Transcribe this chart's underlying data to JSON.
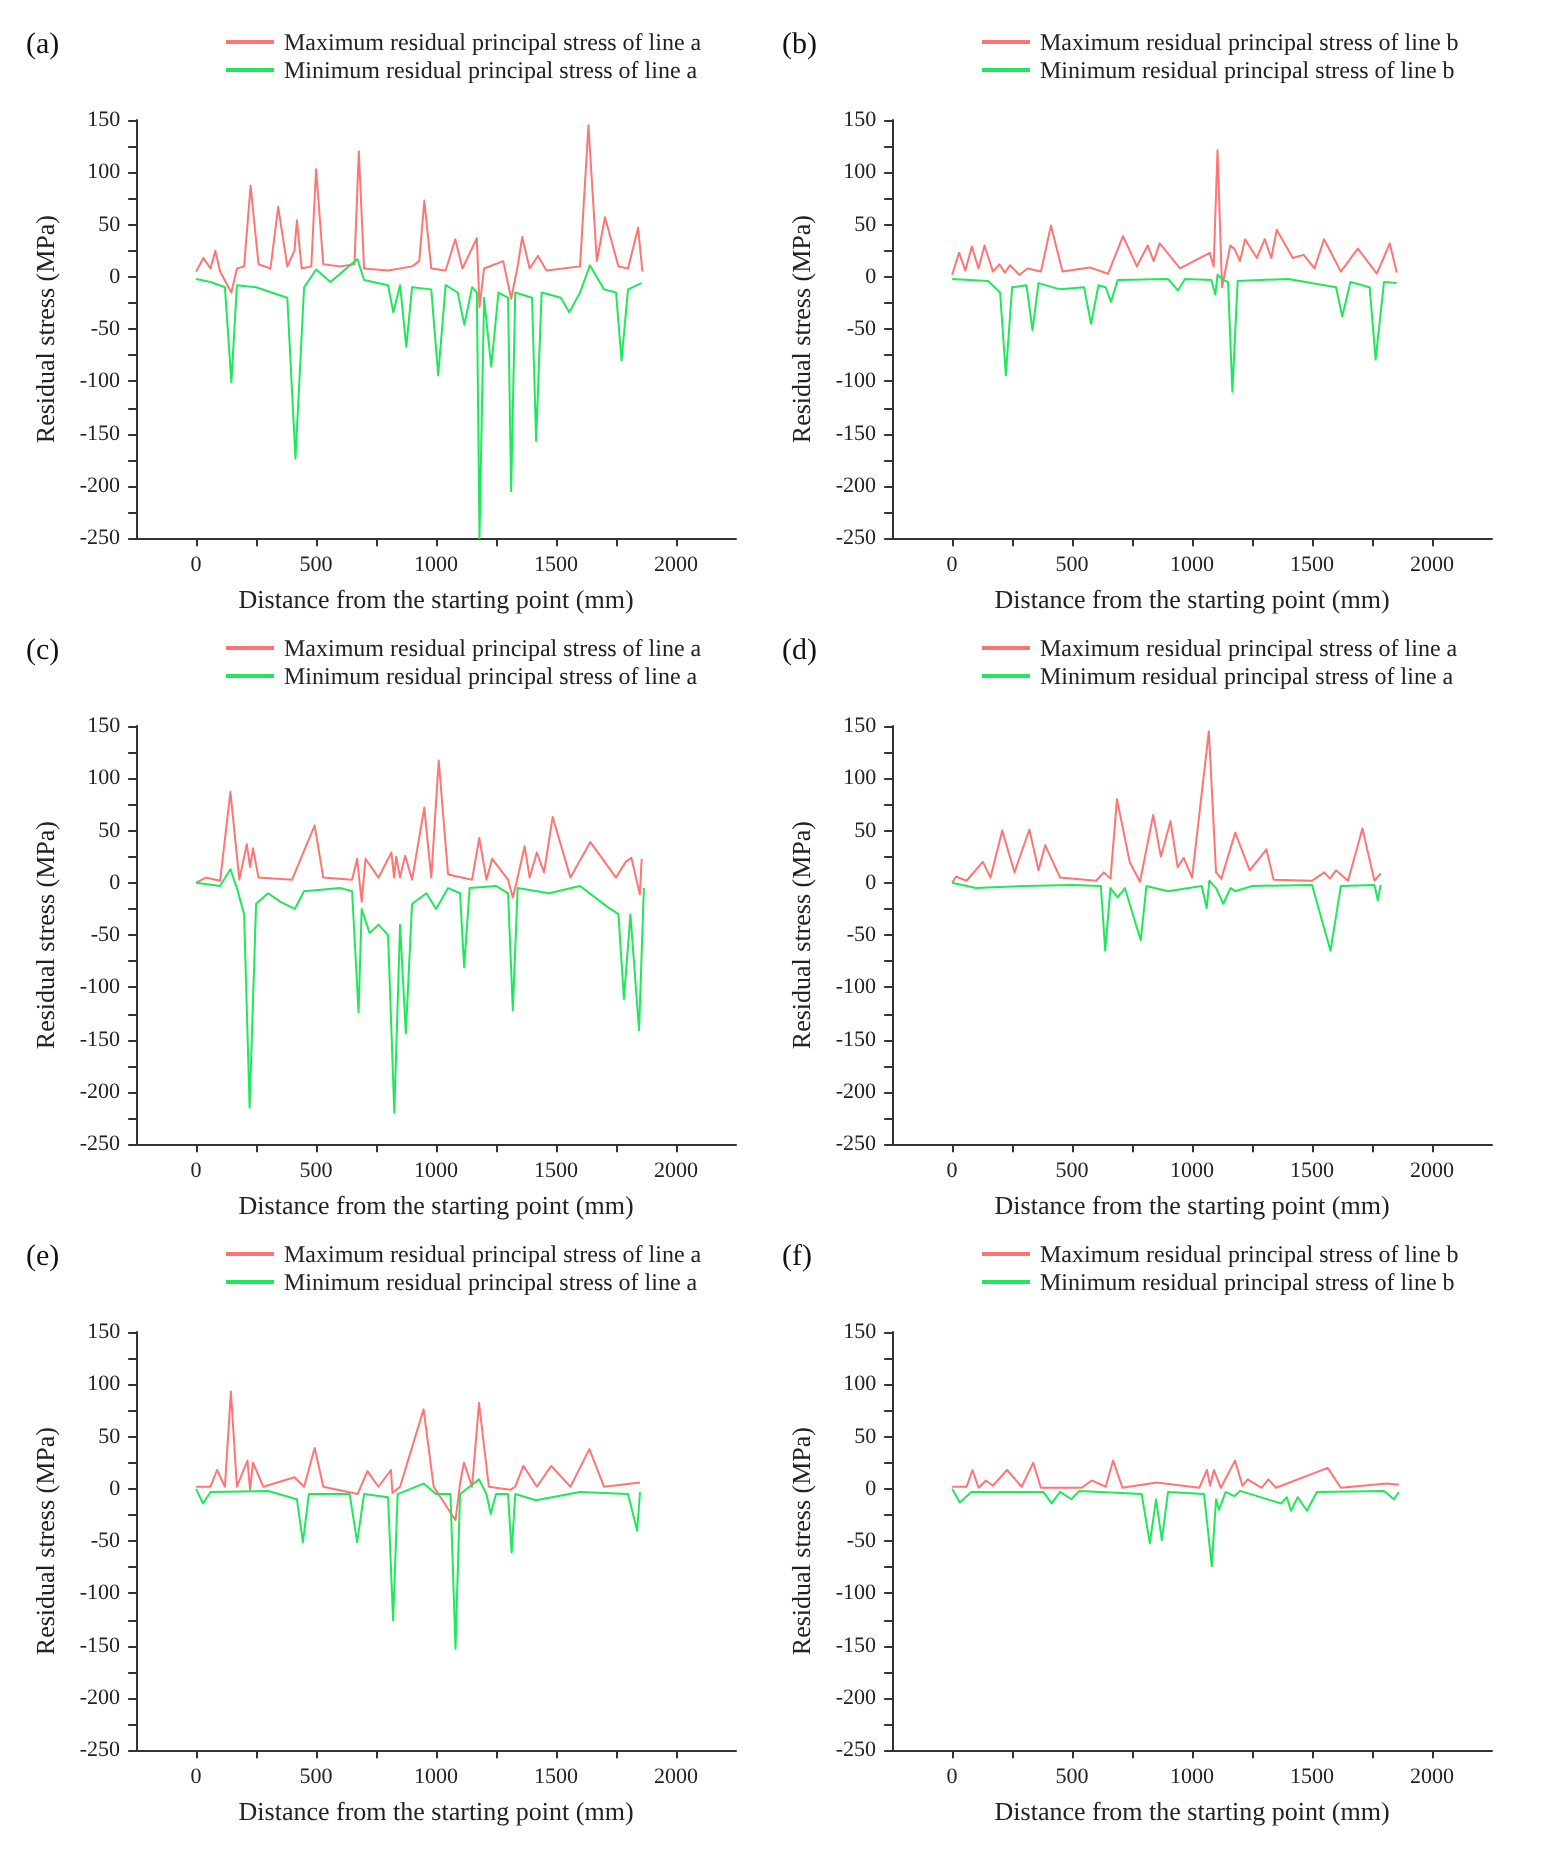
{
  "chart_data": [
    {
      "type": "line",
      "title": "(a)",
      "xlabel": "Distance from the starting point (mm)",
      "ylabel": "Residual stress (MPa)",
      "xlim": [
        -250,
        2250
      ],
      "ylim": [
        -250,
        150
      ],
      "xticks": [
        0,
        {
          "value": 250,
          "label": null
        },
        500,
        {
          "value": 750,
          "label": null
        },
        1000,
        {
          "value": 1250,
          "label": null
        },
        1500,
        {
          "value": 1750,
          "label": null
        },
        2000
      ],
      "yticks": [
        -250,
        {
          "value": -225,
          "label": null
        },
        -200,
        {
          "value": -175,
          "label": null
        },
        -150,
        {
          "value": -125,
          "label": null
        },
        -100,
        {
          "value": -75,
          "label": null
        },
        -50,
        {
          "value": -25,
          "label": null
        },
        0,
        {
          "value": 25,
          "label": null
        },
        50,
        {
          "value": 75,
          "label": null
        },
        100,
        {
          "value": 125,
          "label": null
        },
        150
      ],
      "legend": "top",
      "marker": "none",
      "line_style": "solid",
      "series": [
        {
          "name": "Maximum residual principal stress of line a",
          "color": "#ff7575",
          "x": [
            0,
            30,
            60,
            80,
            100,
            147,
            170,
            200,
            227,
            260,
            310,
            342,
            380,
            410,
            420,
            440,
            480,
            500,
            530,
            600,
            660,
            678,
            700,
            800,
            900,
            930,
            951,
            980,
            1040,
            1080,
            1110,
            1170,
            1181,
            1200,
            1280,
            1313,
            1340,
            1359,
            1390,
            1425,
            1460,
            1600,
            1635,
            1670,
            1704,
            1760,
            1800,
            1842,
            1860
          ],
          "values": [
            5,
            18,
            8,
            25,
            5,
            -15,
            8,
            10,
            87,
            12,
            8,
            67,
            10,
            25,
            54,
            8,
            10,
            103,
            12,
            10,
            12,
            120,
            8,
            6,
            10,
            15,
            73,
            8,
            6,
            36,
            8,
            37,
            -29,
            8,
            15,
            -21,
            10,
            38,
            8,
            20,
            6,
            10,
            145,
            15,
            57,
            10,
            8,
            47,
            5
          ]
        },
        {
          "name": "Minimum residual principal stress of line a",
          "color": "#1fe85a",
          "x": [
            0,
            60,
            120,
            147,
            170,
            250,
            380,
            414,
            450,
            500,
            560,
            672,
            700,
            800,
            822,
            850,
            876,
            900,
            980,
            1009,
            1040,
            1090,
            1118,
            1150,
            1170,
            1181,
            1200,
            1230,
            1260,
            1300,
            1313,
            1330,
            1400,
            1417,
            1440,
            1520,
            1555,
            1600,
            1641,
            1700,
            1750,
            1773,
            1800,
            1856
          ],
          "values": [
            -2,
            -5,
            -10,
            -101,
            -8,
            -10,
            -20,
            -174,
            -10,
            7,
            -5,
            17,
            -3,
            -8,
            -34,
            -8,
            -67,
            -10,
            -12,
            -94,
            -8,
            -15,
            -46,
            -10,
            -15,
            -250,
            -20,
            -86,
            -15,
            -20,
            -205,
            -15,
            -20,
            -157,
            -15,
            -20,
            -34,
            -15,
            11,
            -12,
            -15,
            -80,
            -12,
            -6
          ]
        }
      ]
    },
    {
      "type": "line",
      "title": "(b)",
      "xlabel": "Distance from the starting point (mm)",
      "ylabel": "Residual stress (MPa)",
      "xlim": [
        -250,
        2250
      ],
      "ylim": [
        -250,
        150
      ],
      "xticks": [
        0,
        {
          "value": 250,
          "label": null
        },
        500,
        {
          "value": 750,
          "label": null
        },
        1000,
        {
          "value": 1250,
          "label": null
        },
        1500,
        {
          "value": 1750,
          "label": null
        },
        2000
      ],
      "yticks": [
        -250,
        {
          "value": -225,
          "label": null
        },
        -200,
        {
          "value": -175,
          "label": null
        },
        -150,
        {
          "value": -125,
          "label": null
        },
        -100,
        {
          "value": -75,
          "label": null
        },
        -50,
        {
          "value": -25,
          "label": null
        },
        0,
        {
          "value": 25,
          "label": null
        },
        50,
        {
          "value": 75,
          "label": null
        },
        100,
        {
          "value": 125,
          "label": null
        },
        150
      ],
      "legend": "top",
      "marker": "none",
      "line_style": "solid",
      "series": [
        {
          "name": "Maximum residual principal stress of line b",
          "color": "#ff7575",
          "x": [
            0,
            29,
            55,
            82,
            110,
            135,
            170,
            197,
            220,
            241,
            280,
            315,
            370,
            412,
            460,
            574,
            650,
            712,
            770,
            815,
            840,
            865,
            950,
            1074,
            1090,
            1106,
            1125,
            1159,
            1176,
            1200,
            1221,
            1270,
            1303,
            1330,
            1353,
            1420,
            1465,
            1510,
            1550,
            1620,
            1691,
            1770,
            1824,
            1853
          ],
          "values": [
            2,
            23,
            6,
            29,
            8,
            30,
            5,
            12,
            4,
            11,
            2,
            8,
            5,
            49,
            5,
            9,
            3,
            39,
            10,
            30,
            15,
            32,
            8,
            23,
            10,
            121,
            -10,
            30,
            27,
            15,
            36,
            18,
            36,
            18,
            45,
            18,
            21,
            8,
            36,
            5,
            27,
            3,
            32,
            4
          ]
        },
        {
          "name": "Minimum residual principal stress of line b",
          "color": "#1fe85a",
          "x": [
            0,
            150,
            200,
            224,
            250,
            310,
            335,
            360,
            450,
            550,
            579,
            610,
            640,
            662,
            690,
            900,
            941,
            970,
            1080,
            1097,
            1106,
            1130,
            1150,
            1168,
            1190,
            1400,
            1600,
            1626,
            1660,
            1740,
            1765,
            1800,
            1853
          ],
          "values": [
            -2,
            -4,
            -15,
            -94,
            -10,
            -8,
            -51,
            -6,
            -12,
            -10,
            -45,
            -8,
            -10,
            -24,
            -3,
            -2,
            -13,
            -2,
            -3,
            -17,
            2,
            -3,
            -5,
            -110,
            -4,
            -2,
            -10,
            -38,
            -5,
            -10,
            -79,
            -5,
            -6
          ]
        }
      ]
    },
    {
      "type": "line",
      "title": "(c)",
      "xlabel": "Distance from the starting point (mm)",
      "ylabel": "Residual stress (MPa)",
      "xlim": [
        -250,
        2250
      ],
      "ylim": [
        -250,
        150
      ],
      "xticks": [
        0,
        {
          "value": 250,
          "label": null
        },
        500,
        {
          "value": 750,
          "label": null
        },
        1000,
        {
          "value": 1250,
          "label": null
        },
        1500,
        {
          "value": 1750,
          "label": null
        },
        2000
      ],
      "yticks": [
        -250,
        {
          "value": -225,
          "label": null
        },
        -200,
        {
          "value": -175,
          "label": null
        },
        -150,
        {
          "value": -125,
          "label": null
        },
        -100,
        {
          "value": -75,
          "label": null
        },
        -50,
        {
          "value": -25,
          "label": null
        },
        0,
        {
          "value": 25,
          "label": null
        },
        50,
        {
          "value": 75,
          "label": null
        },
        100,
        {
          "value": 125,
          "label": null
        },
        150
      ],
      "legend": "top",
      "marker": "none",
      "line_style": "solid",
      "series": [
        {
          "name": "Maximum residual principal stress of line a",
          "color": "#ff7575",
          "x": [
            0,
            40,
            100,
            143,
            180,
            211,
            225,
            237,
            260,
            400,
            494,
            530,
            650,
            671,
            690,
            706,
            760,
            814,
            825,
            834,
            850,
            871,
            900,
            951,
            980,
            1011,
            1050,
            1150,
            1180,
            1210,
            1234,
            1300,
            1320,
            1340,
            1369,
            1390,
            1420,
            1450,
            1486,
            1560,
            1643,
            1750,
            1790,
            1814,
            1849,
            1857
          ],
          "values": [
            0,
            5,
            2,
            87,
            3,
            37,
            15,
            33,
            5,
            3,
            55,
            5,
            3,
            23,
            -18,
            23,
            5,
            29,
            5,
            25,
            5,
            26,
            3,
            72,
            5,
            117,
            8,
            3,
            43,
            3,
            23,
            3,
            -14,
            5,
            35,
            5,
            29,
            10,
            63,
            5,
            39,
            5,
            20,
            24,
            -11,
            23
          ]
        },
        {
          "name": "Minimum residual principal stress of line a",
          "color": "#1fe85a",
          "x": [
            0,
            100,
            143,
            170,
            200,
            223,
            250,
            300,
            350,
            411,
            450,
            600,
            650,
            677,
            690,
            723,
            760,
            800,
            826,
            850,
            874,
            900,
            960,
            1000,
            1050,
            1100,
            1117,
            1140,
            1250,
            1300,
            1320,
            1340,
            1471,
            1600,
            1714,
            1760,
            1783,
            1810,
            1846,
            1866
          ],
          "values": [
            0,
            -3,
            13,
            -5,
            -30,
            -215,
            -20,
            -10,
            -18,
            -25,
            -8,
            -5,
            -8,
            -124,
            -25,
            -48,
            -40,
            -50,
            -220,
            -40,
            -144,
            -20,
            -10,
            -25,
            -5,
            -10,
            -81,
            -5,
            -3,
            -10,
            -122,
            -5,
            -10,
            -3,
            -23,
            -30,
            -111,
            -30,
            -141,
            -5
          ]
        }
      ]
    },
    {
      "type": "line",
      "title": "(d)",
      "xlabel": "Distance from the starting point (mm)",
      "ylabel": "Residual stress (MPa)",
      "xlim": [
        -250,
        2250
      ],
      "ylim": [
        -250,
        150
      ],
      "xticks": [
        0,
        {
          "value": 250,
          "label": null
        },
        500,
        {
          "value": 750,
          "label": null
        },
        1000,
        {
          "value": 1250,
          "label": null
        },
        1500,
        {
          "value": 1750,
          "label": null
        },
        2000
      ],
      "yticks": [
        -250,
        {
          "value": -225,
          "label": null
        },
        -200,
        {
          "value": -175,
          "label": null
        },
        -150,
        {
          "value": -125,
          "label": null
        },
        -100,
        {
          "value": -75,
          "label": null
        },
        -50,
        {
          "value": -25,
          "label": null
        },
        0,
        {
          "value": 25,
          "label": null
        },
        50,
        {
          "value": 75,
          "label": null
        },
        100,
        {
          "value": 125,
          "label": null
        },
        150
      ],
      "legend": "top",
      "marker": "none",
      "line_style": "solid",
      "series": [
        {
          "name": "Maximum residual principal stress of line a",
          "color": "#ff7575",
          "x": [
            0,
            17,
            60,
            128,
            160,
            209,
            260,
            322,
            360,
            388,
            450,
            600,
            632,
            660,
            687,
            740,
            783,
            838,
            870,
            910,
            940,
            965,
            1000,
            1070,
            1100,
            1122,
            1180,
            1240,
            1310,
            1340,
            1500,
            1551,
            1575,
            1600,
            1650,
            1710,
            1760,
            1786
          ],
          "values": [
            0,
            6,
            2,
            20,
            5,
            50,
            10,
            51,
            12,
            36,
            5,
            2,
            10,
            4,
            80,
            20,
            1,
            65,
            25,
            59,
            15,
            24,
            5,
            145,
            10,
            4,
            48,
            12,
            32,
            3,
            2,
            10,
            4,
            12,
            2,
            52,
            2,
            9
          ]
        },
        {
          "name": "Minimum residual principal stress of line a",
          "color": "#1fe85a",
          "x": [
            0,
            100,
            300,
            500,
            620,
            638,
            660,
            690,
            720,
            786,
            810,
            900,
            1040,
            1061,
            1072,
            1100,
            1130,
            1160,
            1180,
            1250,
            1500,
            1577,
            1620,
            1760,
            1774,
            1786
          ],
          "values": [
            0,
            -5,
            -3,
            -2,
            -3,
            -65,
            -5,
            -14,
            -5,
            -55,
            -3,
            -8,
            -3,
            -24,
            2,
            -5,
            -20,
            -5,
            -8,
            -3,
            -2,
            -65,
            -3,
            -2,
            -17,
            -2
          ]
        }
      ]
    },
    {
      "type": "line",
      "title": "(e)",
      "xlabel": "Distance from the starting point (mm)",
      "ylabel": "Residual stress (MPa)",
      "xlim": [
        -250,
        2250
      ],
      "ylim": [
        -250,
        150
      ],
      "xticks": [
        0,
        {
          "value": 250,
          "label": null
        },
        500,
        {
          "value": 750,
          "label": null
        },
        1000,
        {
          "value": 1250,
          "label": null
        },
        1500,
        {
          "value": 1750,
          "label": null
        },
        2000
      ],
      "yticks": [
        -250,
        {
          "value": -225,
          "label": null
        },
        -200,
        {
          "value": -175,
          "label": null
        },
        -150,
        {
          "value": -125,
          "label": null
        },
        -100,
        {
          "value": -75,
          "label": null
        },
        -50,
        {
          "value": -25,
          "label": null
        },
        0,
        {
          "value": 25,
          "label": null
        },
        50,
        {
          "value": 75,
          "label": null
        },
        100,
        {
          "value": 125,
          "label": null
        },
        150
      ],
      "legend": "top",
      "marker": "none",
      "line_style": "solid",
      "series": [
        {
          "name": "Maximum residual principal stress of line a",
          "color": "#ff7575",
          "x": [
            0,
            60,
            87,
            120,
            145,
            170,
            214,
            225,
            237,
            280,
            410,
            450,
            494,
            530,
            673,
            714,
            760,
            812,
            818,
            850,
            948,
            990,
            1081,
            1100,
            1116,
            1150,
            1179,
            1220,
            1309,
            1330,
            1364,
            1420,
            1480,
            1560,
            1639,
            1700,
            1850
          ],
          "values": [
            2,
            2,
            18,
            2,
            93,
            2,
            27,
            -1,
            25,
            2,
            11,
            2,
            39,
            2,
            -5,
            17,
            2,
            18,
            -4,
            2,
            76,
            2,
            -30,
            5,
            25,
            2,
            82,
            2,
            -1,
            2,
            22,
            2,
            22,
            2,
            38,
            2,
            6
          ]
        },
        {
          "name": "Minimum residual principal stress of line a",
          "color": "#1fe85a",
          "x": [
            0,
            29,
            60,
            300,
            420,
            445,
            470,
            640,
            671,
            700,
            800,
            821,
            840,
            948,
            1000,
            1060,
            1081,
            1100,
            1179,
            1210,
            1228,
            1250,
            1300,
            1315,
            1330,
            1416,
            1600,
            1800,
            1838,
            1850
          ],
          "values": [
            0,
            -14,
            -3,
            -2,
            -10,
            -51,
            -5,
            -5,
            -51,
            -5,
            -8,
            -126,
            -5,
            5,
            -5,
            -5,
            -153,
            -5,
            9,
            -5,
            -24,
            -5,
            -5,
            -61,
            -5,
            -11,
            -3,
            -5,
            -40,
            -3
          ]
        }
      ]
    },
    {
      "type": "line",
      "title": "(f)",
      "xlabel": "Distance from the starting point (mm)",
      "ylabel": "Residual stress (MPa)",
      "xlim": [
        -250,
        2250
      ],
      "ylim": [
        -250,
        150
      ],
      "xticks": [
        0,
        {
          "value": 250,
          "label": null
        },
        500,
        {
          "value": 750,
          "label": null
        },
        1000,
        {
          "value": 1250,
          "label": null
        },
        1500,
        {
          "value": 1750,
          "label": null
        },
        2000
      ],
      "yticks": [
        -250,
        {
          "value": -225,
          "label": null
        },
        -200,
        {
          "value": -175,
          "label": null
        },
        -150,
        {
          "value": -125,
          "label": null
        },
        -100,
        {
          "value": -75,
          "label": null
        },
        -50,
        {
          "value": -25,
          "label": null
        },
        0,
        {
          "value": 25,
          "label": null
        },
        50,
        {
          "value": 75,
          "label": null
        },
        100,
        {
          "value": 125,
          "label": null
        },
        150
      ],
      "legend": "top",
      "marker": "none",
      "line_style": "solid",
      "series": [
        {
          "name": "Maximum residual principal stress of line b",
          "color": "#ff7575",
          "x": [
            0,
            60,
            85,
            110,
            141,
            170,
            229,
            290,
            338,
            370,
            540,
            582,
            640,
            671,
            710,
            853,
            1030,
            1062,
            1075,
            1091,
            1120,
            1179,
            1210,
            1232,
            1290,
            1318,
            1350,
            1565,
            1620,
            1812,
            1862
          ],
          "values": [
            2,
            2,
            18,
            1,
            8,
            3,
            18,
            2,
            25,
            1,
            1,
            8,
            2,
            27,
            1,
            6,
            1,
            18,
            3,
            18,
            1,
            27,
            3,
            9,
            1,
            9,
            1,
            20,
            1,
            5,
            4
          ]
        },
        {
          "name": "Minimum residual principal stress of line b",
          "color": "#1fe85a",
          "x": [
            0,
            32,
            80,
            380,
            415,
            450,
            497,
            530,
            790,
            824,
            850,
            874,
            900,
            1050,
            1082,
            1100,
            1112,
            1140,
            1176,
            1200,
            1371,
            1395,
            1412,
            1440,
            1479,
            1520,
            1800,
            1841,
            1862
          ],
          "values": [
            0,
            -13,
            -3,
            -3,
            -14,
            -3,
            -10,
            -2,
            -5,
            -52,
            -10,
            -49,
            -3,
            -5,
            -74,
            -10,
            -20,
            -3,
            -7,
            -2,
            -14,
            -8,
            -21,
            -8,
            -21,
            -3,
            -2,
            -10,
            -3
          ]
        }
      ]
    }
  ]
}
